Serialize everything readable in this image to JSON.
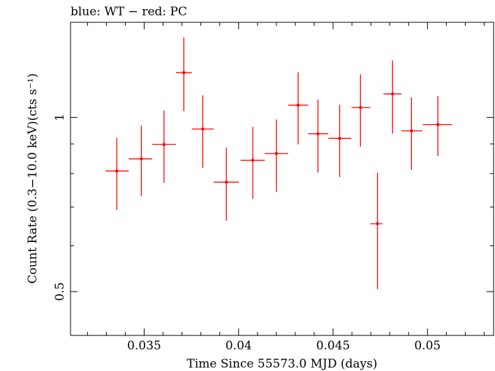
{
  "chart_data": {
    "type": "scatter",
    "title": "blue: WT − red: PC",
    "xlabel": "Time Since 55573.0 MJD (days)",
    "ylabel": "Count Rate (0.3−10.0 keV)(cts s⁻¹)",
    "xlim": [
      0.0311,
      0.0535
    ],
    "ylim": [
      0.42,
      1.46
    ],
    "yscale": "log",
    "x_ticks": [
      {
        "value": 0.035,
        "label": "0.035"
      },
      {
        "value": 0.04,
        "label": "0.04"
      },
      {
        "value": 0.045,
        "label": "0.045"
      },
      {
        "value": 0.05,
        "label": "0.05"
      }
    ],
    "y_ticks": [
      {
        "value": 0.5,
        "label": "0.5"
      },
      {
        "value": 1,
        "label": "1"
      }
    ],
    "grid": false,
    "series": [
      {
        "name": "PC",
        "color": "#ff0000",
        "points": [
          {
            "x": 0.03355,
            "xlo": 0.03295,
            "xhi": 0.03418,
            "y": 0.808,
            "ylo": 0.692,
            "yhi": 0.922
          },
          {
            "x": 0.03485,
            "xlo": 0.03418,
            "xhi": 0.03542,
            "y": 0.848,
            "ylo": 0.731,
            "yhi": 0.968
          },
          {
            "x": 0.03605,
            "xlo": 0.03542,
            "xhi": 0.03668,
            "y": 0.898,
            "ylo": 0.771,
            "yhi": 1.028
          },
          {
            "x": 0.0371,
            "xlo": 0.03668,
            "xhi": 0.03752,
            "y": 1.195,
            "ylo": 1.025,
            "yhi": 1.375
          },
          {
            "x": 0.0381,
            "xlo": 0.03752,
            "xhi": 0.03868,
            "y": 0.955,
            "ylo": 0.818,
            "yhi": 1.092
          },
          {
            "x": 0.03935,
            "xlo": 0.03868,
            "xhi": 0.04002,
            "y": 0.773,
            "ylo": 0.663,
            "yhi": 0.887
          },
          {
            "x": 0.04075,
            "xlo": 0.0401,
            "xhi": 0.04138,
            "y": 0.843,
            "ylo": 0.723,
            "yhi": 0.963
          },
          {
            "x": 0.042,
            "xlo": 0.04138,
            "xhi": 0.04262,
            "y": 0.866,
            "ylo": 0.743,
            "yhi": 0.992
          },
          {
            "x": 0.04315,
            "xlo": 0.04262,
            "xhi": 0.04368,
            "y": 1.05,
            "ylo": 0.898,
            "yhi": 1.197
          },
          {
            "x": 0.0442,
            "xlo": 0.04368,
            "xhi": 0.04475,
            "y": 0.937,
            "ylo": 0.803,
            "yhi": 1.073
          },
          {
            "x": 0.04535,
            "xlo": 0.04475,
            "xhi": 0.04597,
            "y": 0.92,
            "ylo": 0.789,
            "yhi": 1.052
          },
          {
            "x": 0.04645,
            "xlo": 0.04597,
            "xhi": 0.04697,
            "y": 1.04,
            "ylo": 0.89,
            "yhi": 1.187
          },
          {
            "x": 0.04735,
            "xlo": 0.04697,
            "xhi": 0.04762,
            "y": 0.655,
            "ylo": 0.505,
            "yhi": 0.802
          },
          {
            "x": 0.04815,
            "xlo": 0.04767,
            "xhi": 0.04862,
            "y": 1.098,
            "ylo": 0.938,
            "yhi": 1.255
          },
          {
            "x": 0.04915,
            "xlo": 0.04862,
            "xhi": 0.04972,
            "y": 0.948,
            "ylo": 0.812,
            "yhi": 1.083
          },
          {
            "x": 0.05055,
            "xlo": 0.04975,
            "xhi": 0.0513,
            "y": 0.972,
            "ylo": 0.857,
            "yhi": 1.088
          }
        ]
      }
    ]
  }
}
